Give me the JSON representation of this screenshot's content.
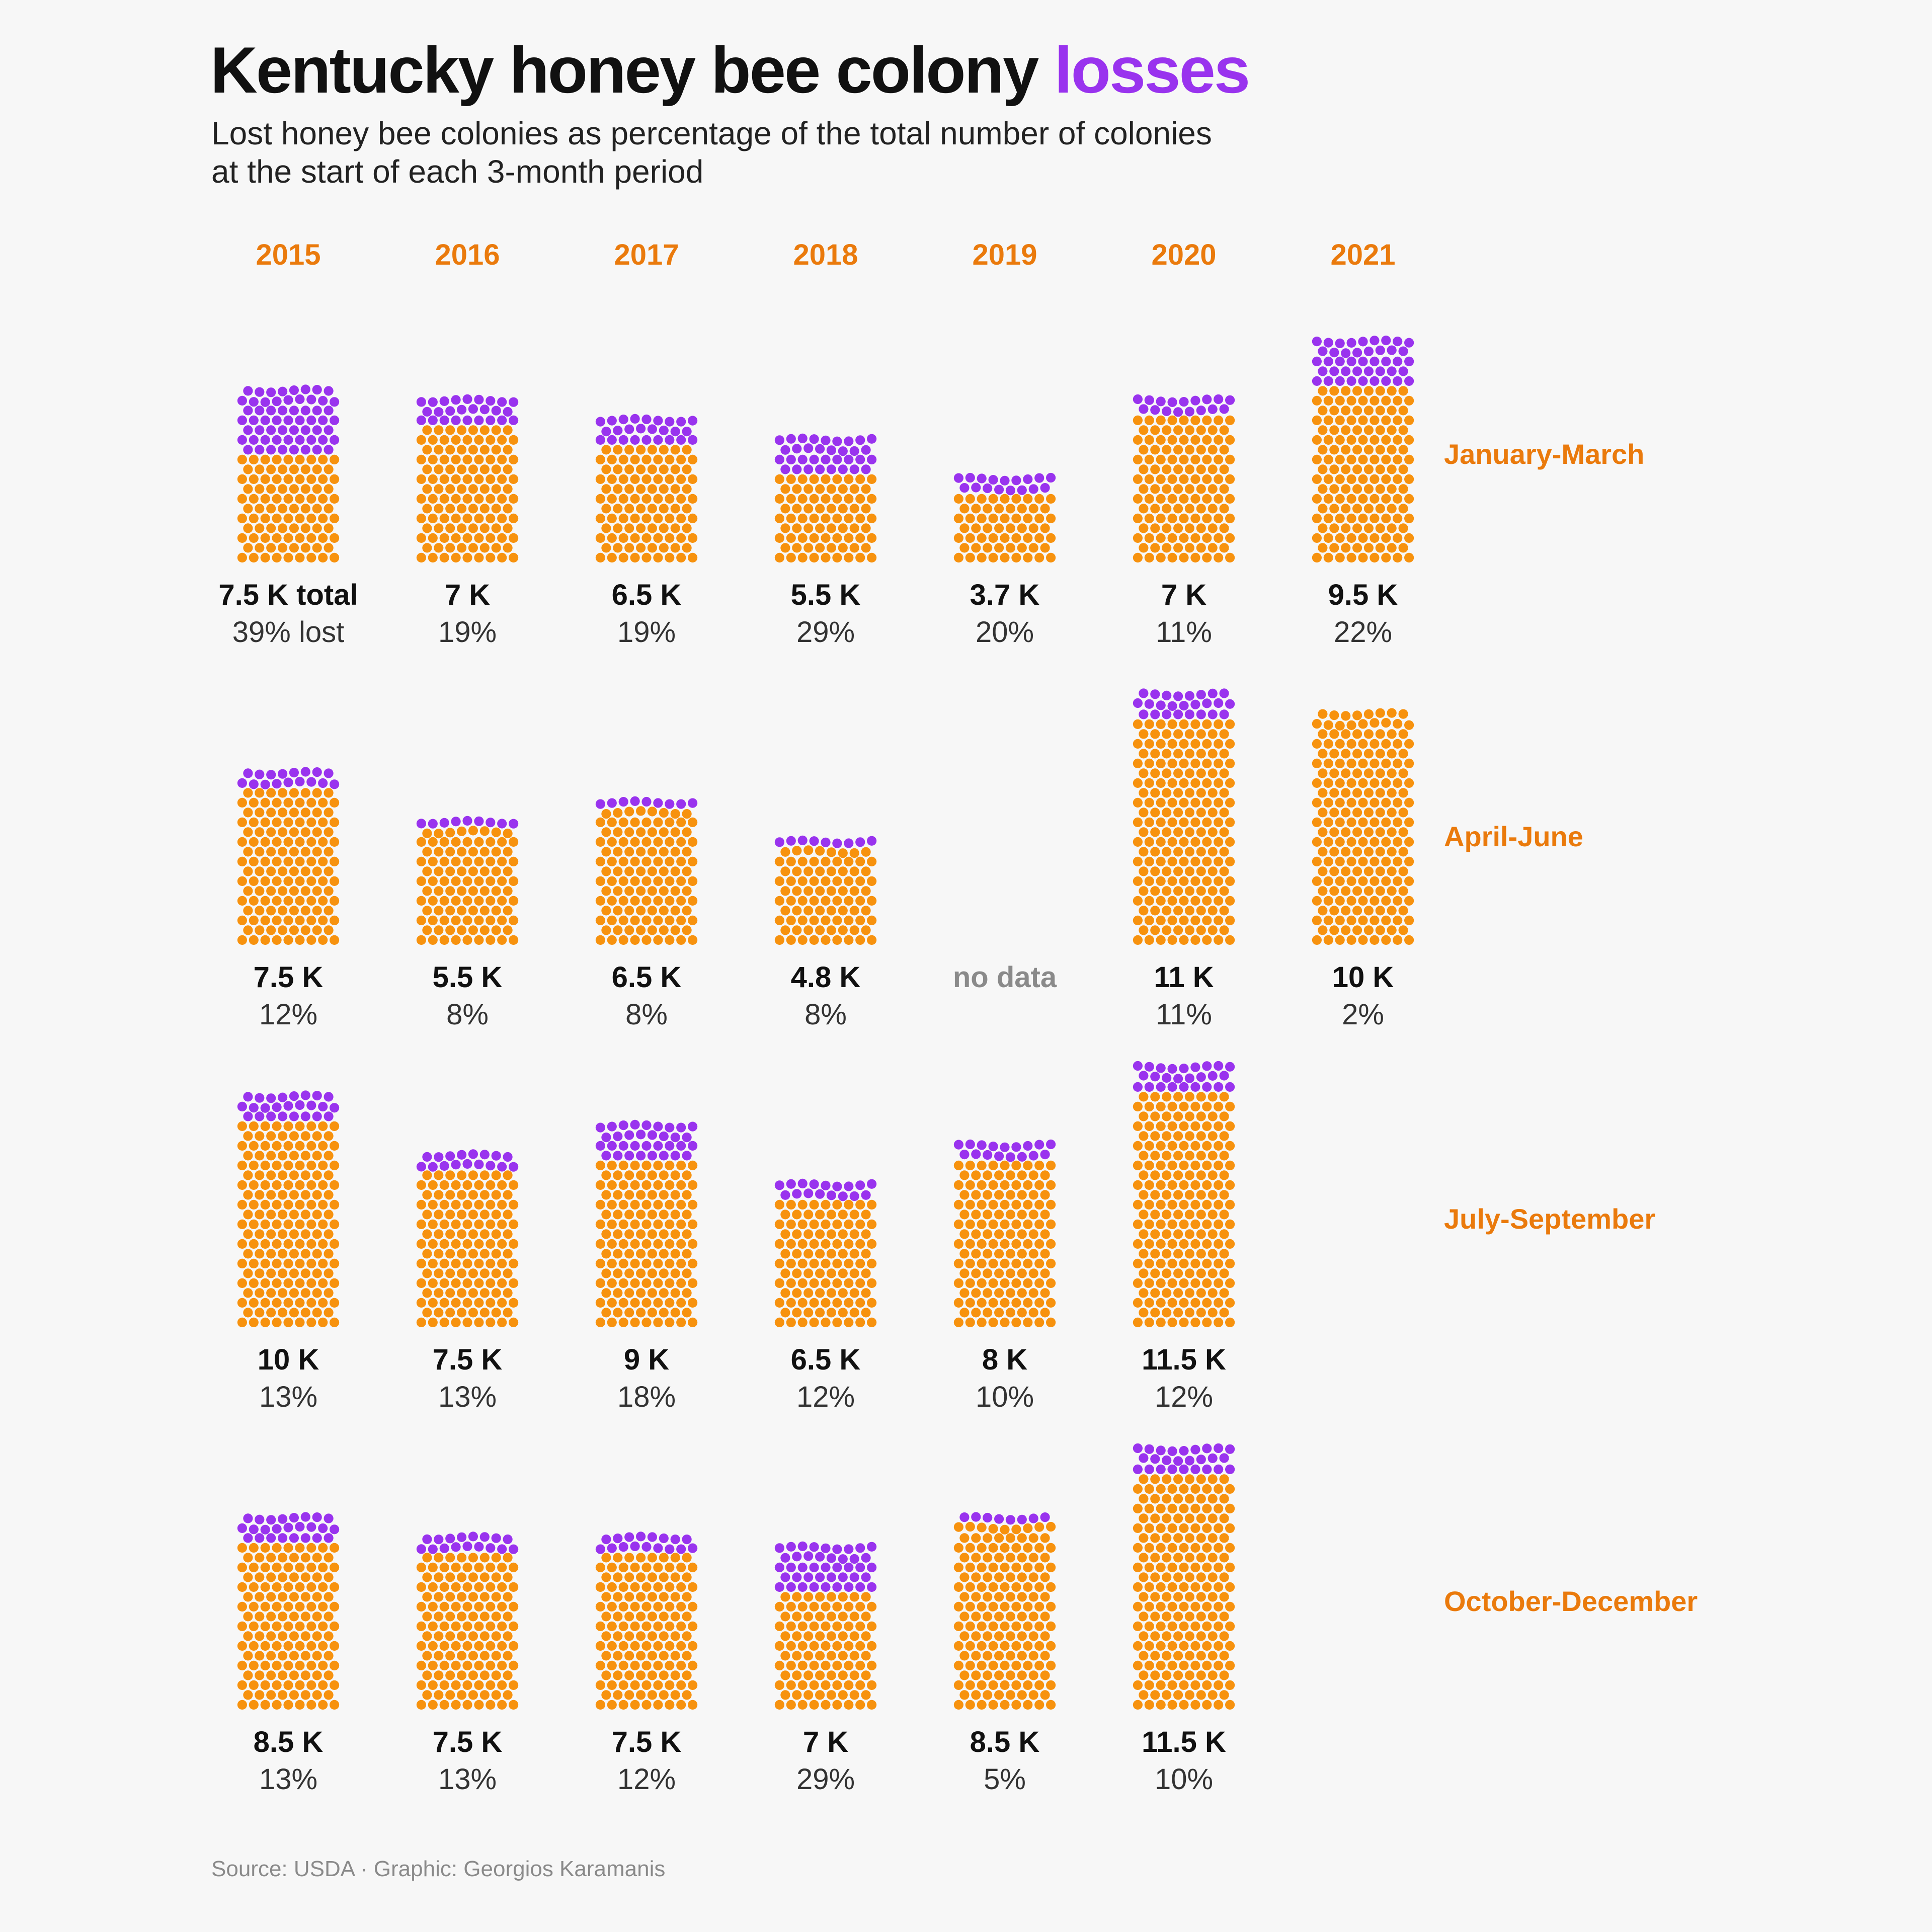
{
  "header": {
    "title_main": "Kentucky honey bee colony",
    "title_highlight": "losses",
    "subtitle_line1": "Lost honey bee colonies as percentage of the total number of colonies",
    "subtitle_line2": "at the start of each 3-month period"
  },
  "source": "Source: USDA · Graphic: Georgios Karamanis",
  "colors": {
    "remaining": "#f7920e",
    "lost": "#9933ee",
    "label_orange": "#ea7a0c",
    "text_dark": "#111111",
    "text_body": "#333333",
    "no_data_gray": "#8a8a8a",
    "background": "#f7f7f7"
  },
  "chart_data": {
    "type": "waffle",
    "years": [
      "2015",
      "2016",
      "2017",
      "2018",
      "2019",
      "2020",
      "2021"
    ],
    "periods": [
      "January-March",
      "April-June",
      "July-September",
      "October-December"
    ],
    "no_data_label": "no data",
    "cells": [
      [
        {
          "total": 7.5,
          "label": "7.5 K total",
          "pct": 39,
          "pct_label": "39% lost"
        },
        {
          "total": 7,
          "label": "7 K",
          "pct": 19,
          "pct_label": "19%"
        },
        {
          "total": 6.5,
          "label": "6.5 K",
          "pct": 19,
          "pct_label": "19%"
        },
        {
          "total": 5.5,
          "label": "5.5 K",
          "pct": 29,
          "pct_label": "29%"
        },
        {
          "total": 3.7,
          "label": "3.7 K",
          "pct": 20,
          "pct_label": "20%"
        },
        {
          "total": 7,
          "label": "7 K",
          "pct": 11,
          "pct_label": "11%"
        },
        {
          "total": 9.5,
          "label": "9.5 K",
          "pct": 22,
          "pct_label": "22%"
        }
      ],
      [
        {
          "total": 7.5,
          "label": "7.5 K",
          "pct": 12,
          "pct_label": "12%"
        },
        {
          "total": 5.5,
          "label": "5.5 K",
          "pct": 8,
          "pct_label": "8%"
        },
        {
          "total": 6.5,
          "label": "6.5 K",
          "pct": 8,
          "pct_label": "8%"
        },
        {
          "total": 4.8,
          "label": "4.8 K",
          "pct": 8,
          "pct_label": "8%"
        },
        null,
        {
          "total": 11,
          "label": "11 K",
          "pct": 11,
          "pct_label": "11%"
        },
        {
          "total": 10,
          "label": "10 K",
          "pct": 2,
          "pct_label": "2%"
        }
      ],
      [
        {
          "total": 10,
          "label": "10 K",
          "pct": 13,
          "pct_label": "13%"
        },
        {
          "total": 7.5,
          "label": "7.5 K",
          "pct": 13,
          "pct_label": "13%"
        },
        {
          "total": 9,
          "label": "9 K",
          "pct": 18,
          "pct_label": "18%"
        },
        {
          "total": 6.5,
          "label": "6.5 K",
          "pct": 12,
          "pct_label": "12%"
        },
        {
          "total": 8,
          "label": "8 K",
          "pct": 10,
          "pct_label": "10%"
        },
        {
          "total": 11.5,
          "label": "11.5 K",
          "pct": 12,
          "pct_label": "12%"
        },
        "none"
      ],
      [
        {
          "total": 8.5,
          "label": "8.5 K",
          "pct": 13,
          "pct_label": "13%"
        },
        {
          "total": 7.5,
          "label": "7.5 K",
          "pct": 13,
          "pct_label": "13%"
        },
        {
          "total": 7.5,
          "label": "7.5 K",
          "pct": 12,
          "pct_label": "12%"
        },
        {
          "total": 7,
          "label": "7 K",
          "pct": 29,
          "pct_label": "29%"
        },
        {
          "total": 8.5,
          "label": "8.5 K",
          "pct": 5,
          "pct_label": "5%"
        },
        {
          "total": 11.5,
          "label": "11.5 K",
          "pct": 10,
          "pct_label": "10%"
        },
        "none"
      ]
    ]
  }
}
